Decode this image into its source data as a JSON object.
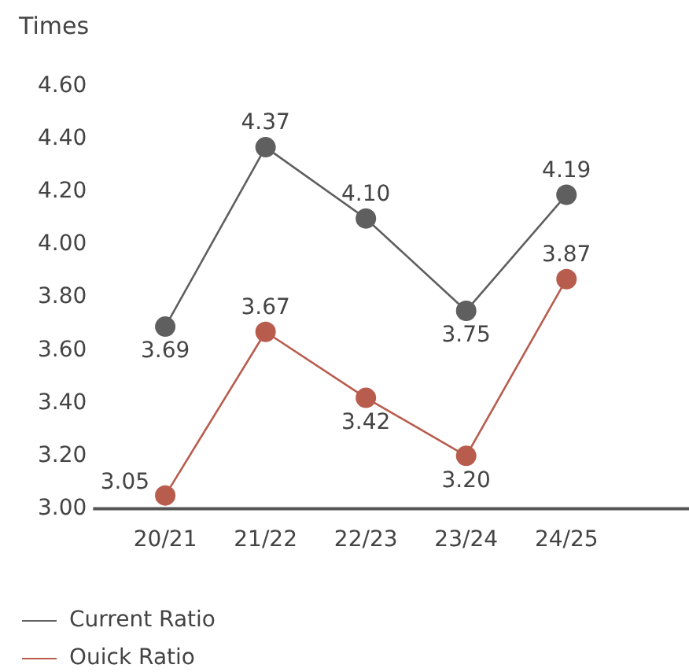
{
  "chart_data": {
    "type": "line",
    "ylabel": "Times",
    "categories": [
      "20/21",
      "21/22",
      "22/23",
      "23/24",
      "24/25"
    ],
    "series": [
      {
        "name": "Current Ratio",
        "color": "#5f5f5f",
        "values": [
          3.69,
          4.37,
          4.1,
          3.75,
          4.19
        ],
        "value_labels": [
          "3.69",
          "4.37",
          "4.10",
          "3.75",
          "4.19"
        ]
      },
      {
        "name": "Ouick Ratio",
        "color": "#b85c4e",
        "values": [
          3.05,
          3.67,
          3.42,
          3.2,
          3.87
        ],
        "value_labels": [
          "3.05",
          "3.67",
          "3.42",
          "3.20",
          "3.87"
        ]
      }
    ],
    "ylim": [
      3.0,
      4.6
    ],
    "yticks": [
      {
        "value": 3.0,
        "label": "3.00"
      },
      {
        "value": 3.2,
        "label": "3.20"
      },
      {
        "value": 3.4,
        "label": "3.40"
      },
      {
        "value": 3.6,
        "label": "3.60"
      },
      {
        "value": 3.8,
        "label": "3.80"
      },
      {
        "value": 4.0,
        "label": "4.00"
      },
      {
        "value": 4.2,
        "label": "4.20"
      },
      {
        "value": 4.4,
        "label": "4.40"
      },
      {
        "value": 4.6,
        "label": "4.60"
      }
    ],
    "grid": false,
    "legend": "bottom left",
    "marker": "circle",
    "line_style": "solid"
  }
}
